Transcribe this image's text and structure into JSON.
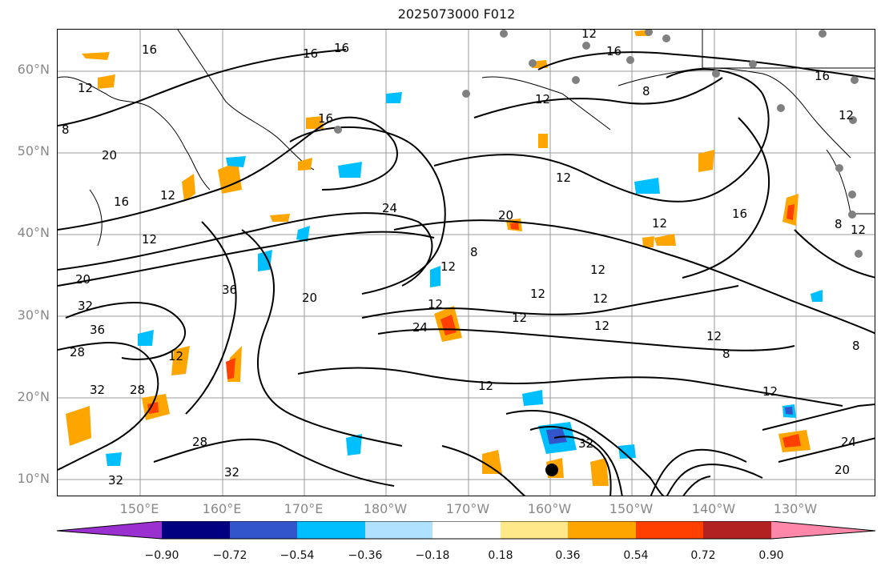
{
  "title": "2025073000 F012",
  "latitude_labels": [
    {
      "label": "60°N"
    },
    {
      "label": "50°N"
    },
    {
      "label": "40°N"
    },
    {
      "label": "30°N"
    },
    {
      "label": "20°N"
    },
    {
      "label": "10°N"
    }
  ],
  "longitude_labels": [
    {
      "label": "150°E"
    },
    {
      "label": "160°E"
    },
    {
      "label": "170°E"
    },
    {
      "label": "180°W"
    },
    {
      "label": "170°W"
    },
    {
      "label": "160°W"
    },
    {
      "label": "150°W"
    },
    {
      "label": "140°W"
    },
    {
      "label": "130°W"
    }
  ],
  "contour_labels": [
    "16",
    "16",
    "16",
    "12",
    "16",
    "12",
    "16",
    "8",
    "16",
    "12",
    "8",
    "12",
    "12",
    "16",
    "20",
    "12",
    "20",
    "16",
    "12",
    "12",
    "24",
    "12",
    "20",
    "12",
    "8",
    "12",
    "12",
    "12",
    "36",
    "32",
    "28",
    "20",
    "36",
    "24",
    "28",
    "32",
    "28",
    "32",
    "12",
    "12",
    "12",
    "32",
    "12",
    "8",
    "12",
    "8",
    "24",
    "32",
    "12",
    "12",
    "8",
    "20"
  ],
  "colorbar": {
    "colors": [
      "#9b30d0",
      "#000080",
      "#3355cc",
      "#00bfff",
      "#b0e2ff",
      "#ffffff",
      "#ffe88a",
      "#ffa500",
      "#ff4000",
      "#b22222",
      "#ff88aa"
    ],
    "ticks": [
      "−0.90",
      "−0.72",
      "−0.54",
      "−0.36",
      "−0.18",
      "0.18",
      "0.36",
      "0.54",
      "0.72",
      "0.90"
    ]
  },
  "fill_colors": {
    "land": "#000000",
    "contour": "#000000",
    "station": "#808080"
  }
}
